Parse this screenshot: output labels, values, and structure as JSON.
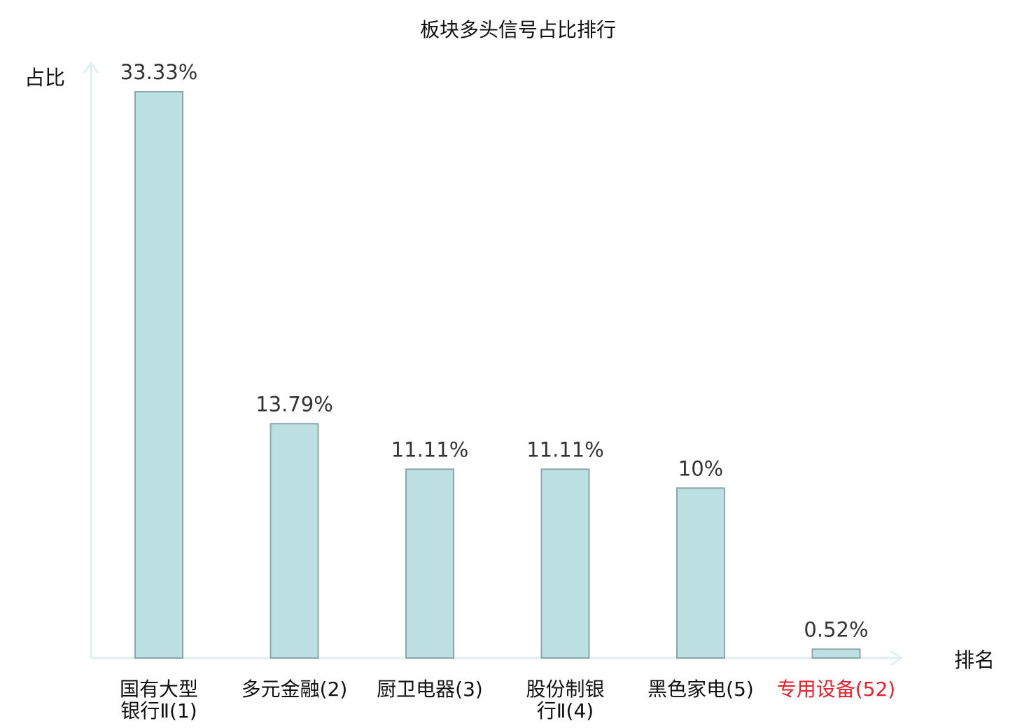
{
  "chart_data": {
    "type": "bar",
    "title": "板块多头信号占比排行",
    "ylabel": "占比",
    "xlabel": "排名",
    "ylim": [
      0,
      33.33
    ],
    "grid": false,
    "categories": [
      {
        "lines": [
          "国有大型",
          "银行Ⅱ(1)"
        ],
        "highlight": false
      },
      {
        "lines": [
          "多元金融(2)"
        ],
        "highlight": false
      },
      {
        "lines": [
          "厨卫电器(3)"
        ],
        "highlight": false
      },
      {
        "lines": [
          "股份制银",
          "行Ⅱ(4)"
        ],
        "highlight": false
      },
      {
        "lines": [
          "黑色家电(5)"
        ],
        "highlight": false
      },
      {
        "lines": [
          "专用设备(52)"
        ],
        "highlight": true
      }
    ],
    "values": [
      33.33,
      13.79,
      11.11,
      11.11,
      10,
      0.52
    ],
    "value_labels": [
      "33.33%",
      "13.79%",
      "11.11%",
      "11.11%",
      "10%",
      "0.52%"
    ],
    "colors": {
      "bar_fill": "#bde0e3",
      "bar_stroke": "#8aa8aa",
      "axis": "#dff0ee",
      "highlight": "#e8202a",
      "text": "#111111"
    }
  }
}
